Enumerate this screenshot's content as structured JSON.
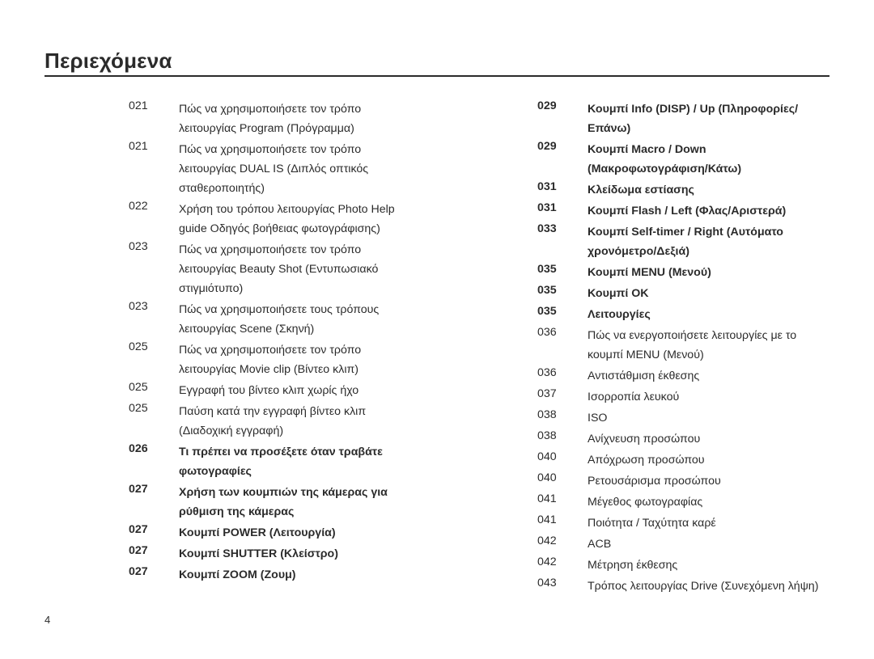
{
  "title": "Περιεχόμενα",
  "page_number": "4",
  "columns": [
    [
      {
        "page": "021",
        "text": "Πώς να χρησιμοποιήσετε τον τρόπο λειτουργίας Program (Πρόγραμμα)",
        "bold": false
      },
      {
        "page": "021",
        "text": "Πώς να χρησιμοποιήσετε τον τρόπο λειτουργίας DUAL IS (Διπλός οπτικός σταθεροποιητής)",
        "bold": false
      },
      {
        "page": "022",
        "text": "Χρήση του τρόπου λειτουργίας Photo Help guide Οδηγός βοήθειας φωτογράφισης)",
        "bold": false
      },
      {
        "page": "023",
        "text": "Πώς να χρησιμοποιήσετε τον τρόπο λειτουργίας Beauty Shot (Εντυπωσιακό στιγμιότυπο)",
        "bold": false
      },
      {
        "page": "023",
        "text": "Πώς να χρησιμοποιήσετε τους τρόπους λειτουργίας Scene (Σκηνή)",
        "bold": false
      },
      {
        "page": "025",
        "text": "Πώς να χρησιμοποιήσετε τον τρόπο λειτουργίας Movie clip (Βίντεο κλιπ)",
        "bold": false
      },
      {
        "page": "025",
        "text": "Εγγραφή του βίντεο κλιπ χωρίς ήχο",
        "bold": false
      },
      {
        "page": "025",
        "text": "Παύση κατά την εγγραφή βίντεο κλιπ (Διαδοχική εγγραφή)",
        "bold": false
      },
      {
        "page": "026",
        "text": "Τι πρέπει να προσέξετε όταν τραβάτε φωτογραφίες",
        "bold": true
      },
      {
        "page": "027",
        "text": "Χρήση των κουμπιών της κάμερας για ρύθμιση της κάμερας",
        "bold": true
      },
      {
        "page": "027",
        "text": "Κουμπί POWER (Λειτουργία)",
        "bold": true
      },
      {
        "page": "027",
        "text": "Κουμπί SHUTTER (Κλείστρο)",
        "bold": true
      },
      {
        "page": "027",
        "text": "Κουμπί ZOOM (Ζουμ)",
        "bold": true
      }
    ],
    [
      {
        "page": "029",
        "text": "Κουμπί Info (DISP) / Up (Πληροφορίες/Επάνω)",
        "bold": true
      },
      {
        "page": "029",
        "text": "Κουμπί Macro / Down (Μακροφωτογράφιση/Κάτω)",
        "bold": true
      },
      {
        "page": "031",
        "text": "Κλείδωμα εστίασης",
        "bold": true
      },
      {
        "page": "031",
        "text": "Κουμπί Flash / Left (Φλας/Αριστερά)",
        "bold": true
      },
      {
        "page": "033",
        "text": "Κουμπί Self-timer / Right (Αυτόματο χρονόμετρο/Δεξιά)",
        "bold": true
      },
      {
        "page": "035",
        "text": "Κουμπί MENU (Μενού)",
        "bold": true
      },
      {
        "page": "035",
        "text": "Κουμπί OK",
        "bold": true
      },
      {
        "page": "035",
        "text": "Λειτουργίες",
        "bold": true
      },
      {
        "page": "036",
        "text": "Πώς να ενεργοποιήσετε λειτουργίες με το κουμπί MENU (Μενού)",
        "bold": false
      },
      {
        "page": "036",
        "text": "Αντιστάθμιση έκθεσης",
        "bold": false
      },
      {
        "page": "037",
        "text": "Ισορροπία λευκού",
        "bold": false
      },
      {
        "page": "038",
        "text": "ISO",
        "bold": false
      },
      {
        "page": "038",
        "text": "Ανίχνευση προσώπου",
        "bold": false
      },
      {
        "page": "040",
        "text": "Απόχρωση προσώπου",
        "bold": false
      },
      {
        "page": "040",
        "text": "Ρετουσάρισμα προσώπου",
        "bold": false
      },
      {
        "page": "041",
        "text": "Μέγεθος φωτογραφίας",
        "bold": false
      },
      {
        "page": "041",
        "text": "Ποιότητα / Ταχύτητα καρέ",
        "bold": false
      },
      {
        "page": "042",
        "text": "ACB",
        "bold": false
      },
      {
        "page": "042",
        "text": "Μέτρηση έκθεσης",
        "bold": false
      },
      {
        "page": "043",
        "text": "Τρόπος λειτουργίας Drive (Συνεχόμενη λήψη)",
        "bold": false
      }
    ]
  ]
}
